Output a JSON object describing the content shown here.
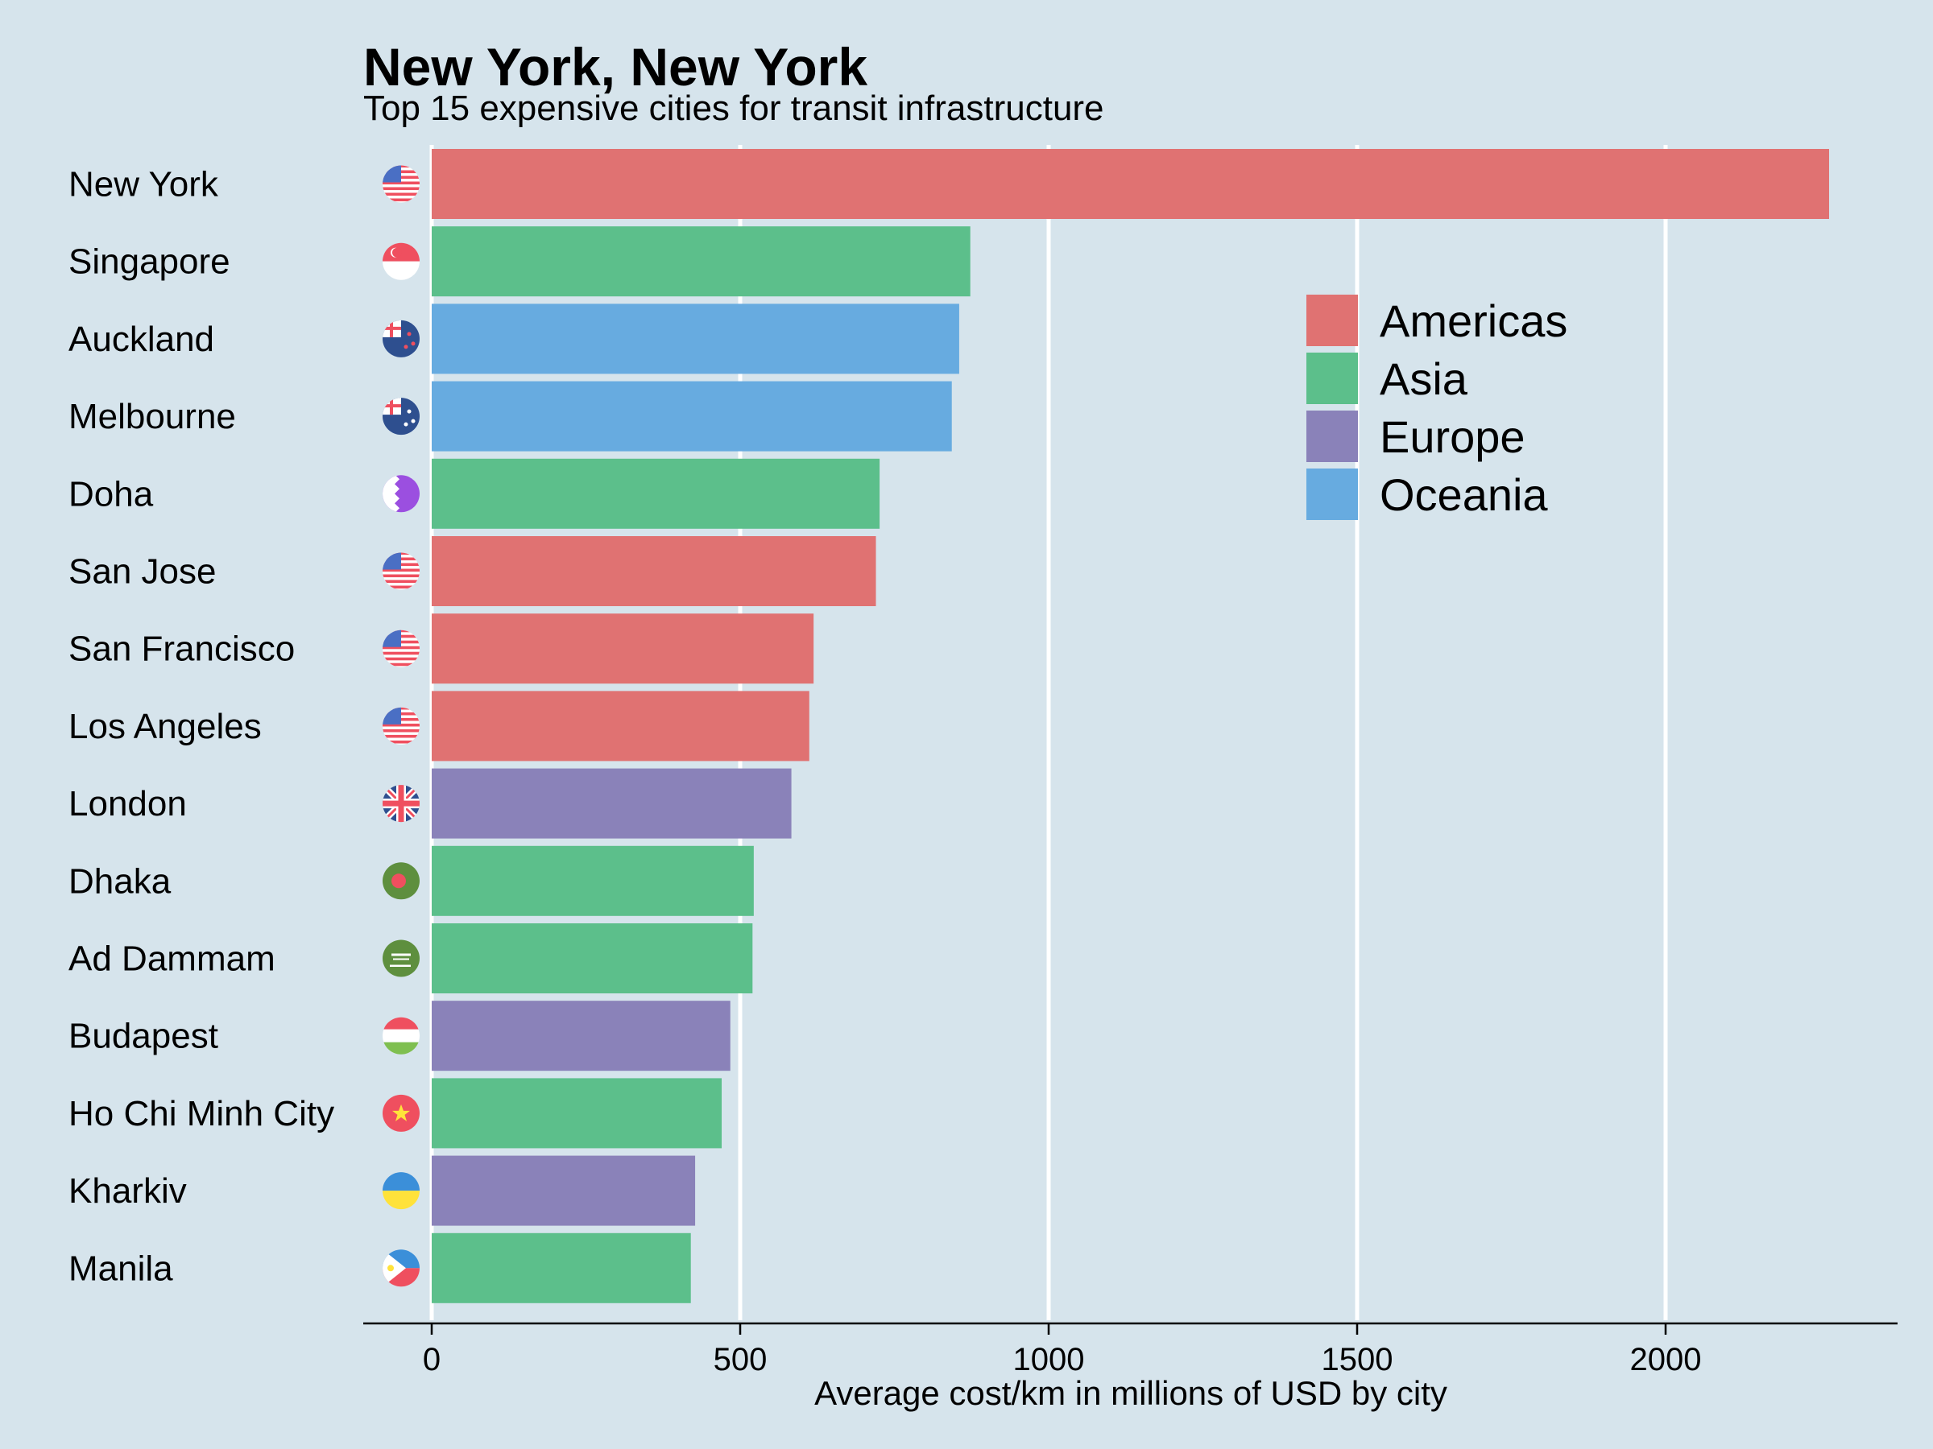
{
  "chart_data": {
    "type": "bar",
    "orientation": "horizontal",
    "title": "New York, New York",
    "subtitle": "Top 15 expensive cities for transit infrastructure",
    "xlabel": "Average cost/km in millions of USD by city",
    "ylabel": "",
    "xlim": [
      0,
      2300
    ],
    "xticks": [
      0,
      500,
      1000,
      1500,
      2000
    ],
    "grid": "vertical",
    "legend_position": "top-right",
    "categories": [
      "New York",
      "Singapore",
      "Auckland",
      "Melbourne",
      "Doha",
      "San Jose",
      "San Francisco",
      "Los Angeles",
      "London",
      "Dhaka",
      "Ad Dammam",
      "Budapest",
      "Ho Chi Minh City",
      "Kharkiv",
      "Manila"
    ],
    "values": [
      2265,
      873,
      855,
      843,
      726,
      720,
      619,
      612,
      583,
      522,
      520,
      484,
      470,
      427,
      420
    ],
    "regions": [
      "Americas",
      "Asia",
      "Oceania",
      "Oceania",
      "Asia",
      "Americas",
      "Americas",
      "Americas",
      "Europe",
      "Asia",
      "Asia",
      "Europe",
      "Asia",
      "Europe",
      "Asia"
    ],
    "flags": [
      "us-flag-icon",
      "sg-flag-icon",
      "nz-flag-icon",
      "au-flag-icon",
      "qa-flag-icon",
      "us-flag-icon",
      "us-flag-icon",
      "us-flag-icon",
      "gb-flag-icon",
      "bd-flag-icon",
      "sa-flag-icon",
      "hu-flag-icon",
      "vn-flag-icon",
      "ua-flag-icon",
      "ph-flag-icon"
    ],
    "legend": [
      {
        "name": "Americas",
        "color": "#e07272"
      },
      {
        "name": "Asia",
        "color": "#5cbf8b"
      },
      {
        "name": "Europe",
        "color": "#8a82b9"
      },
      {
        "name": "Oceania",
        "color": "#67abe0"
      }
    ]
  }
}
